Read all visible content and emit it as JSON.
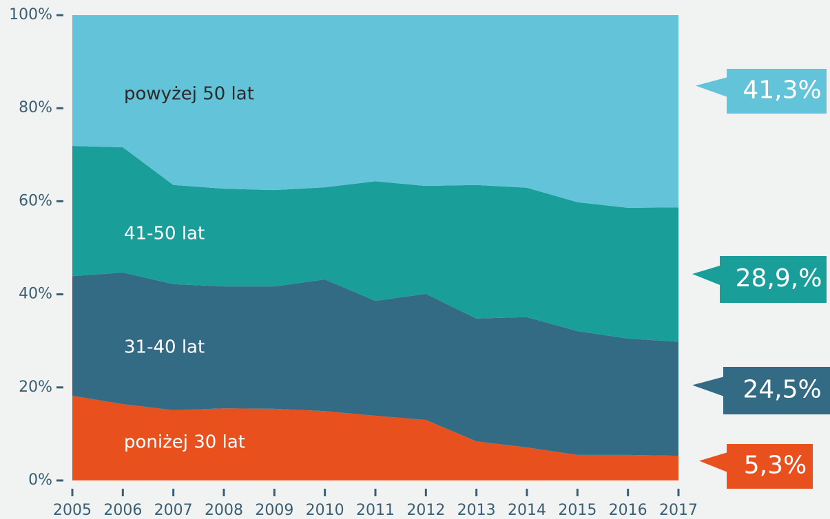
{
  "chart_data": {
    "type": "stacked_area",
    "categories": [
      "2005",
      "2006",
      "2007",
      "2008",
      "2009",
      "2010",
      "2011",
      "2012",
      "2013",
      "2014",
      "2015",
      "2016",
      "2017"
    ],
    "ylim": [
      0,
      100
    ],
    "yticks": [
      {
        "value": 0,
        "label": "0%"
      },
      {
        "value": 20,
        "label": "20%"
      },
      {
        "value": 40,
        "label": "40%"
      },
      {
        "value": 60,
        "label": "60%"
      },
      {
        "value": 80,
        "label": "80%"
      },
      {
        "value": 100,
        "label": "100%"
      }
    ],
    "series": [
      {
        "name": "poniżej 30 lat",
        "color": "#e8501e",
        "values": [
          18.2,
          16.4,
          15.1,
          15.5,
          15.4,
          14.9,
          13.9,
          13.0,
          8.4,
          7.1,
          5.5,
          5.5,
          5.3
        ],
        "value_labels": [
          null,
          null,
          null,
          null,
          null,
          null,
          null,
          null,
          null,
          null,
          null,
          null,
          "5,3%"
        ]
      },
      {
        "name": "31-40 lat",
        "color": "#336b85",
        "values": [
          25.7,
          28.3,
          27.1,
          26.2,
          26.3,
          28.3,
          24.7,
          27.1,
          26.4,
          28.0,
          26.6,
          25.0,
          24.5
        ],
        "value_labels": [
          null,
          null,
          null,
          null,
          null,
          null,
          null,
          null,
          null,
          null,
          null,
          null,
          "24,5%"
        ]
      },
      {
        "name": "41-50 lat",
        "color": "#1a9e9a",
        "values": [
          28.0,
          26.9,
          21.3,
          21.0,
          20.7,
          19.8,
          25.7,
          23.2,
          28.7,
          27.8,
          27.7,
          28.1,
          28.9
        ],
        "value_labels": [
          null,
          null,
          null,
          null,
          null,
          null,
          null,
          null,
          null,
          null,
          null,
          null,
          "28,9,%"
        ]
      },
      {
        "name": "powyżej 50 lat",
        "color": "#62c3d9",
        "values": [
          28.1,
          28.4,
          36.5,
          37.3,
          37.6,
          37.0,
          35.7,
          36.7,
          36.5,
          37.1,
          40.2,
          41.4,
          41.3
        ],
        "value_labels": [
          null,
          null,
          null,
          null,
          null,
          null,
          null,
          null,
          null,
          null,
          null,
          null,
          "41,3%"
        ]
      }
    ]
  }
}
